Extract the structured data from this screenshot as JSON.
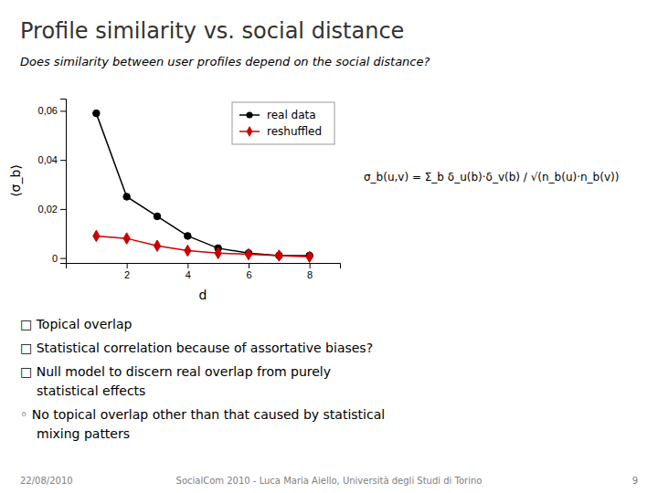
{
  "chart_data": {
    "type": "line",
    "title": "Profile similarity vs. social distance",
    "subtitle": "Does similarity between user profiles depend on the social distance?",
    "x_label": "d",
    "y_label": "⟨σ_b⟩",
    "x": [
      1,
      2,
      3,
      4,
      5,
      6,
      7,
      8
    ],
    "series": [
      {
        "name": "real data",
        "color": "#000000",
        "marker": "circle",
        "values": [
          0.059,
          0.025,
          0.017,
          0.009,
          0.004,
          0.002,
          0.001,
          0.001
        ]
      },
      {
        "name": "reshuffled",
        "color": "#cc0000",
        "marker": "diamond",
        "values": [
          0.009,
          0.008,
          0.005,
          0.003,
          0.002,
          0.0015,
          0.001,
          0.0005
        ]
      }
    ],
    "xlim": [
      0,
      9
    ],
    "xticks": [
      2,
      4,
      6,
      8
    ],
    "ylim": [
      -0.002,
      0.065
    ],
    "yticks": [
      0,
      {
        "value": 0.02,
        "label": "0,02"
      },
      {
        "value": 0.04,
        "label": "0,04"
      },
      {
        "value": 0.06,
        "label": "0,06"
      }
    ],
    "legend": "upper right",
    "annotations": [
      [
        "σ_b(u,v) = Σ_b δ_u(b)·δ_v(b) / √(n_b(u)·n_b(v))"
      ],
      [
        "□ Topical overlap"
      ],
      [
        "□ Statistical correlation because of assortative biases?"
      ],
      [
        "□ Null model to discern real overlap from purely",
        "statistical effects"
      ],
      [
        "◦ No topical overlap other than that caused by statistical",
        "mixing patters"
      ]
    ],
    "footer": [
      "22/08/2010",
      "SocialCom 2010 - Luca Maria Aiello, Università degli Studi di Torino",
      "9"
    ]
  }
}
